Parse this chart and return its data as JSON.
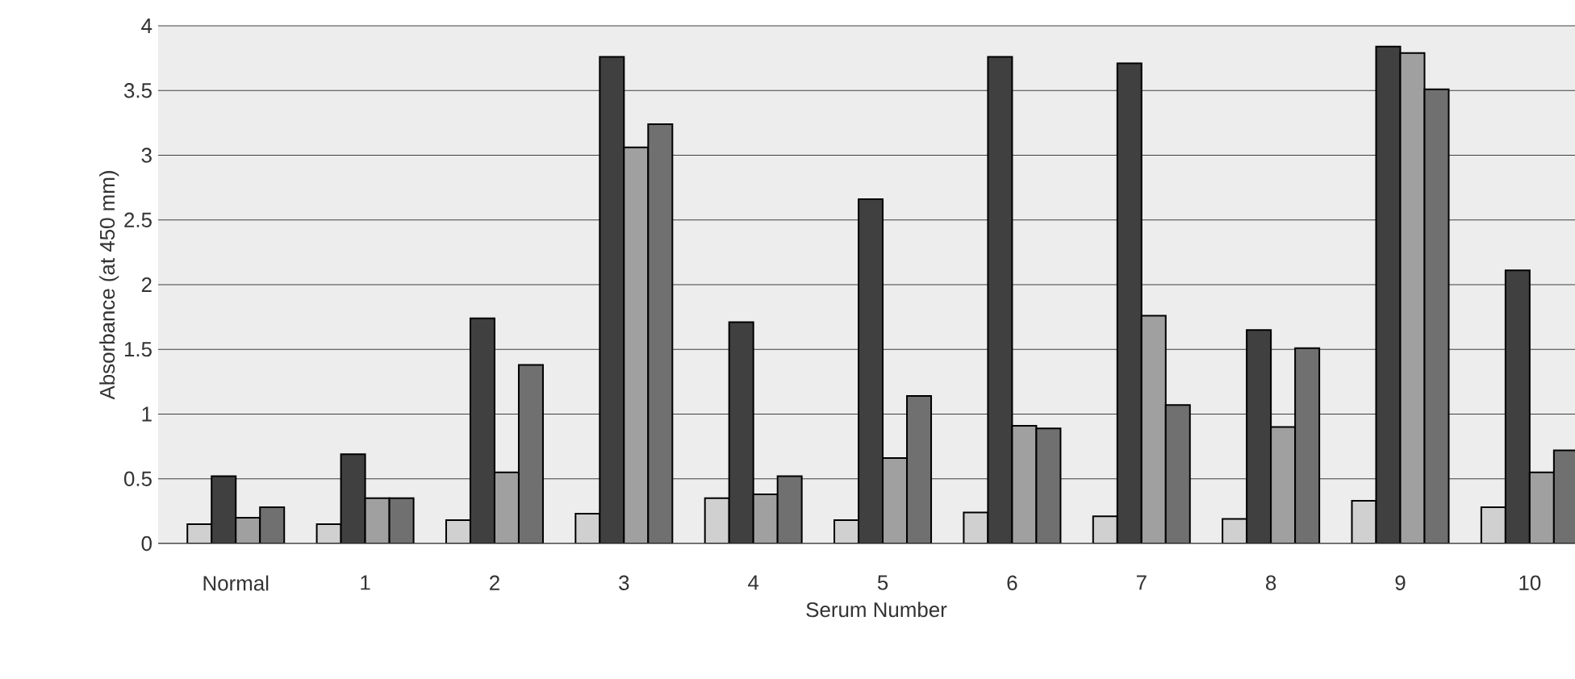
{
  "chart_data": {
    "type": "bar",
    "xlabel": "Serum Number",
    "ylabel": "Absorbance (at 450 mm)",
    "categories": [
      "Normal",
      "1",
      "2",
      "3",
      "4",
      "5",
      "6",
      "7",
      "8",
      "9",
      "10"
    ],
    "series": [
      {
        "color": "#d0d0d0",
        "values": [
          0.15,
          0.15,
          0.18,
          0.23,
          0.35,
          0.18,
          0.24,
          0.21,
          0.19,
          0.33,
          0.28
        ]
      },
      {
        "color": "#404040",
        "values": [
          0.52,
          0.69,
          1.74,
          3.76,
          1.71,
          2.66,
          3.76,
          3.71,
          1.65,
          3.84,
          2.11
        ]
      },
      {
        "color": "#a0a0a0",
        "values": [
          0.2,
          0.35,
          0.55,
          3.06,
          0.38,
          0.66,
          0.91,
          1.76,
          0.9,
          3.79,
          0.55
        ]
      },
      {
        "color": "#707070",
        "values": [
          0.28,
          0.35,
          1.38,
          3.24,
          0.52,
          1.14,
          0.89,
          1.07,
          1.51,
          3.51,
          0.72
        ]
      }
    ],
    "ylim": [
      0,
      4
    ],
    "yticks": [
      0,
      0.5,
      1,
      1.5,
      2,
      2.5,
      3,
      3.5,
      4
    ],
    "grid": "y"
  }
}
